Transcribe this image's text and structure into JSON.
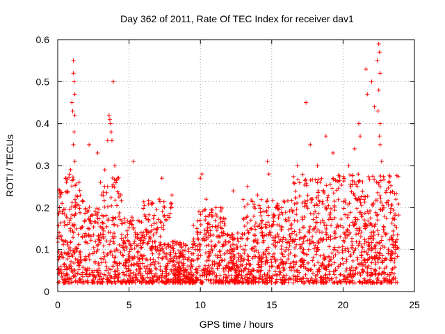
{
  "chart_data": {
    "type": "scatter",
    "title": "Day 362 of 2011, Rate Of TEC Index for receiver dav1",
    "xlabel": "GPS time / hours",
    "ylabel": "ROTI / TECUs",
    "xlim": [
      0,
      25
    ],
    "ylim": [
      0,
      0.6
    ],
    "x_ticks": [
      "0",
      "5",
      "10",
      "15",
      "20",
      "25"
    ],
    "y_ticks": [
      "0",
      "0.1",
      "0.2",
      "0.3",
      "0.4",
      "0.5",
      "0.6"
    ],
    "grid": true,
    "marker": "+",
    "marker_color": "#ff0000",
    "series": [
      {
        "sample_points": [
          [
            0.1,
            0.14
          ],
          [
            0.3,
            0.21
          ],
          [
            0.6,
            0.18
          ],
          [
            0.9,
            0.29
          ],
          [
            1.1,
            0.55
          ],
          [
            1.1,
            0.52
          ],
          [
            1.15,
            0.5
          ],
          [
            1.2,
            0.47
          ],
          [
            1.0,
            0.45
          ],
          [
            1.05,
            0.43
          ],
          [
            1.2,
            0.42
          ],
          [
            1.15,
            0.38
          ],
          [
            1.1,
            0.35
          ],
          [
            1.2,
            0.31
          ],
          [
            1.5,
            0.26
          ],
          [
            2.2,
            0.35
          ],
          [
            2.8,
            0.33
          ],
          [
            3.0,
            0.26
          ],
          [
            3.3,
            0.29
          ],
          [
            3.6,
            0.42
          ],
          [
            3.65,
            0.41
          ],
          [
            3.7,
            0.4
          ],
          [
            3.75,
            0.38
          ],
          [
            3.8,
            0.36
          ],
          [
            3.5,
            0.36
          ],
          [
            3.9,
            0.5
          ],
          [
            4.0,
            0.3
          ],
          [
            4.2,
            0.27
          ],
          [
            5.3,
            0.31
          ],
          [
            7.3,
            0.27
          ],
          [
            8.0,
            0.23
          ],
          [
            10.0,
            0.27
          ],
          [
            10.1,
            0.28
          ],
          [
            10.4,
            0.22
          ],
          [
            11.4,
            0.2
          ],
          [
            12.3,
            0.24
          ],
          [
            13.3,
            0.25
          ],
          [
            14.0,
            0.23
          ],
          [
            14.7,
            0.31
          ],
          [
            14.8,
            0.28
          ],
          [
            15.7,
            0.2
          ],
          [
            16.8,
            0.3
          ],
          [
            17.4,
            0.45
          ],
          [
            17.7,
            0.35
          ],
          [
            18.2,
            0.3
          ],
          [
            18.8,
            0.37
          ],
          [
            19.3,
            0.33
          ],
          [
            20.4,
            0.3
          ],
          [
            20.8,
            0.34
          ],
          [
            21.1,
            0.4
          ],
          [
            21.2,
            0.37
          ],
          [
            21.6,
            0.53
          ],
          [
            21.7,
            0.47
          ],
          [
            22.0,
            0.5
          ],
          [
            22.2,
            0.44
          ],
          [
            22.4,
            0.55
          ],
          [
            22.5,
            0.59
          ],
          [
            22.55,
            0.57
          ],
          [
            22.6,
            0.52
          ],
          [
            22.5,
            0.48
          ],
          [
            22.45,
            0.43
          ],
          [
            22.6,
            0.4
          ],
          [
            22.55,
            0.37
          ],
          [
            22.6,
            0.35
          ],
          [
            22.7,
            0.31
          ],
          [
            23.2,
            0.26
          ],
          [
            23.7,
            0.22
          ]
        ]
      }
    ]
  }
}
